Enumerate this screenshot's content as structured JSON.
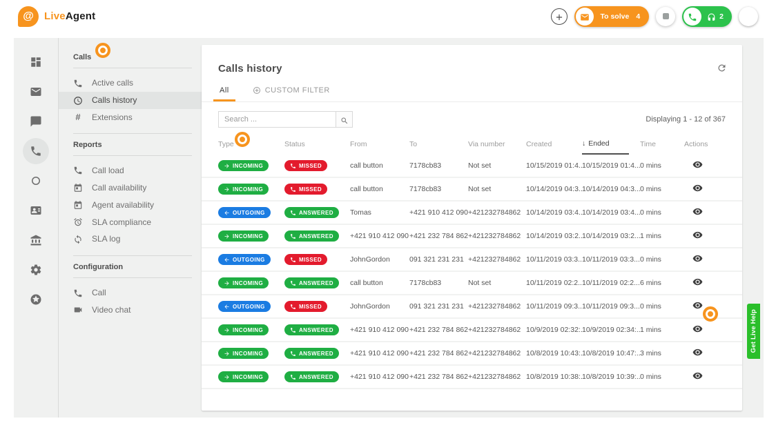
{
  "topbar": {
    "brand": {
      "logo_glyph": "@",
      "name_first": "Live",
      "name_second": "Agent"
    },
    "to_solve": {
      "label": "To solve",
      "count": "4"
    },
    "calls_pill": {
      "count": "2"
    }
  },
  "rail": {
    "items": [
      {
        "name": "dashboard",
        "icon": "dashboard",
        "active": false
      },
      {
        "name": "tickets",
        "icon": "mail",
        "active": false
      },
      {
        "name": "chats",
        "icon": "chat",
        "active": false
      },
      {
        "name": "calls",
        "icon": "phone",
        "active": true
      },
      {
        "name": "history",
        "icon": "donut",
        "active": false
      },
      {
        "name": "contacts",
        "icon": "contacts",
        "active": false
      },
      {
        "name": "company",
        "icon": "bank",
        "active": false
      },
      {
        "name": "settings",
        "icon": "gear",
        "active": false
      },
      {
        "name": "badges",
        "icon": "star",
        "active": false
      }
    ]
  },
  "menu": {
    "sections": [
      {
        "title": "Calls",
        "items": [
          {
            "label": "Active calls",
            "icon": "phone",
            "selected": false
          },
          {
            "label": "Calls history",
            "icon": "clock",
            "selected": true
          },
          {
            "label": "Extensions",
            "icon": "hash",
            "selected": false
          }
        ]
      },
      {
        "title": "Reports",
        "items": [
          {
            "label": "Call load",
            "icon": "phone",
            "selected": false
          },
          {
            "label": "Call availability",
            "icon": "calendar",
            "selected": false
          },
          {
            "label": "Agent availability",
            "icon": "calendar",
            "selected": false
          },
          {
            "label": "SLA compliance",
            "icon": "alarm",
            "selected": false
          },
          {
            "label": "SLA log",
            "icon": "loop",
            "selected": false
          }
        ]
      },
      {
        "title": "Configuration",
        "items": [
          {
            "label": "Call",
            "icon": "phone",
            "selected": false
          },
          {
            "label": "Video chat",
            "icon": "videocam",
            "selected": false
          }
        ]
      }
    ]
  },
  "panel": {
    "title": "Calls history",
    "tabs": [
      {
        "label": "All",
        "selected": true
      },
      {
        "label": "CUSTOM FILTER",
        "selected": false
      }
    ],
    "search_placeholder": "Search ...",
    "displaying": "Displaying 1 - 12 of 367",
    "table": {
      "columns": [
        "Type",
        "Status",
        "From",
        "To",
        "Via number",
        "Created",
        "Ended",
        "Time",
        "Actions"
      ],
      "sorted_column": "Ended",
      "sort_arrow": "↓",
      "rows": [
        {
          "type": "INCOMING",
          "status": "MISSED",
          "from": "call button",
          "to": "7178cb83",
          "via": "Not set",
          "created": "10/15/2019 01:4...",
          "ended": "10/15/2019 01:4...",
          "time": "0 mins"
        },
        {
          "type": "INCOMING",
          "status": "MISSED",
          "from": "call button",
          "to": "7178cb83",
          "via": "Not set",
          "created": "10/14/2019 04:3...",
          "ended": "10/14/2019 04:3...",
          "time": "0 mins"
        },
        {
          "type": "OUTGOING",
          "status": "ANSWERED",
          "from": "Tomas",
          "to": "+421 910 412 090",
          "via": "+421232784862",
          "created": "10/14/2019 03:4...",
          "ended": "10/14/2019 03:4...",
          "time": "0 mins"
        },
        {
          "type": "INCOMING",
          "status": "ANSWERED",
          "from": "+421 910 412 090",
          "to": "+421 232 784 862",
          "via": "+421232784862",
          "created": "10/14/2019 03:2...",
          "ended": "10/14/2019 03:2...",
          "time": "1 mins"
        },
        {
          "type": "OUTGOING",
          "status": "MISSED",
          "from": "JohnGordon",
          "to": "091 321 231 231",
          "via": "+421232784862",
          "created": "10/11/2019 03:3...",
          "ended": "10/11/2019 03:3...",
          "time": "0 mins"
        },
        {
          "type": "INCOMING",
          "status": "ANSWERED",
          "from": "call button",
          "to": "7178cb83",
          "via": "Not set",
          "created": "10/11/2019 02:2...",
          "ended": "10/11/2019 02:2...",
          "time": "6 mins"
        },
        {
          "type": "OUTGOING",
          "status": "MISSED",
          "from": "JohnGordon",
          "to": "091 321 231 231",
          "via": "+421232784862",
          "created": "10/11/2019 09:3...",
          "ended": "10/11/2019 09:3...",
          "time": "0 mins"
        },
        {
          "type": "INCOMING",
          "status": "ANSWERED",
          "from": "+421 910 412 090",
          "to": "+421 232 784 862",
          "via": "+421232784862",
          "created": "10/9/2019 02:32:...",
          "ended": "10/9/2019 02:34:...",
          "time": "1 mins"
        },
        {
          "type": "INCOMING",
          "status": "ANSWERED",
          "from": "+421 910 412 090",
          "to": "+421 232 784 862",
          "via": "+421232784862",
          "created": "10/8/2019 10:43:...",
          "ended": "10/8/2019 10:47:...",
          "time": "3 mins"
        },
        {
          "type": "INCOMING",
          "status": "ANSWERED",
          "from": "+421 910 412 090",
          "to": "+421 232 784 862",
          "via": "+421232784862",
          "created": "10/8/2019 10:38:...",
          "ended": "10/8/2019 10:39:...",
          "time": "0 mins"
        }
      ]
    }
  },
  "help_tab": {
    "label": "Get Live Help"
  },
  "colors": {
    "orange": "#f7941e",
    "green": "#1fae43",
    "red": "#e31b2d",
    "blue": "#1b7ce2",
    "pill-green": "#2cc24c",
    "help-green": "#2abf2a",
    "bg": "#f0f1f0"
  }
}
